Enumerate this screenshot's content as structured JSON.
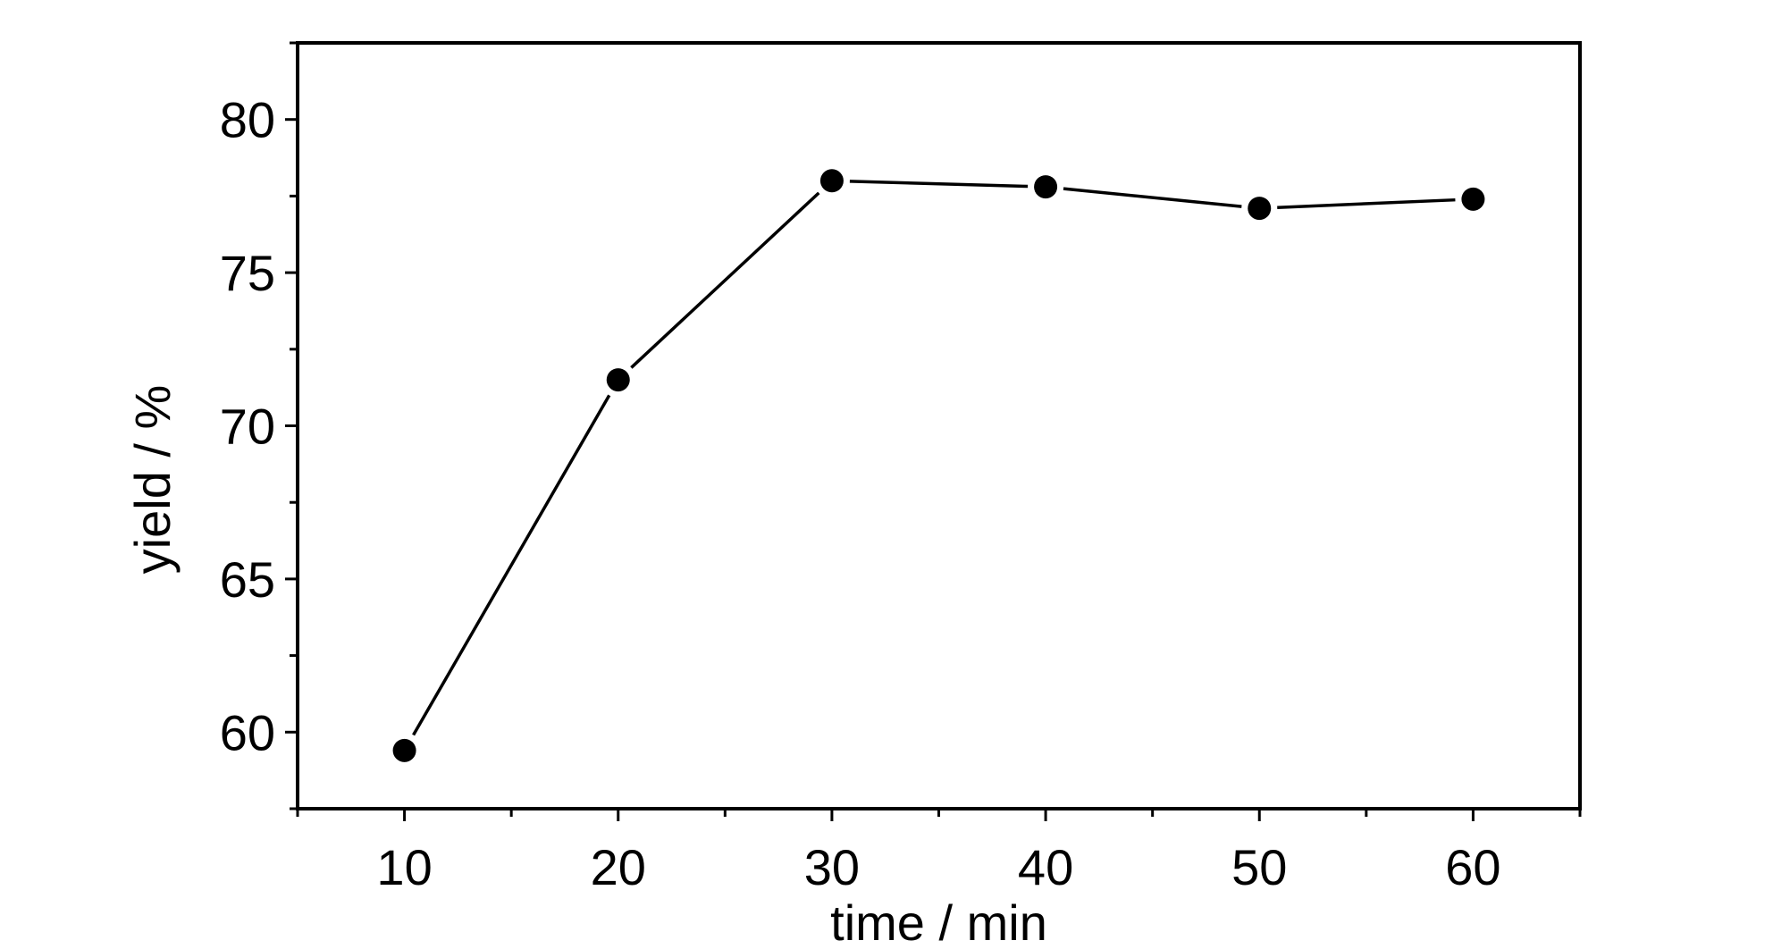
{
  "chart_data": {
    "type": "line",
    "title": "",
    "xlabel": "time / min",
    "ylabel": "yield / %",
    "xlim": [
      5,
      65
    ],
    "ylim": [
      57.5,
      82.5
    ],
    "xticks": [
      "10",
      "20",
      "30",
      "40",
      "50",
      "60"
    ],
    "yticks": [
      "60",
      "65",
      "70",
      "75",
      "80"
    ],
    "grid": false,
    "series": [
      {
        "x": [
          10,
          20,
          30,
          40,
          50,
          60
        ],
        "y": [
          59.4,
          71.5,
          78.0,
          77.8,
          77.1,
          77.4
        ],
        "marker": "filled-circle",
        "color": "#000000"
      }
    ]
  }
}
